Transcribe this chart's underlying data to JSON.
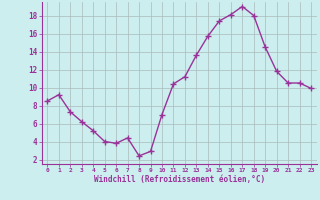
{
  "x": [
    0,
    1,
    2,
    3,
    4,
    5,
    6,
    7,
    8,
    9,
    10,
    11,
    12,
    13,
    14,
    15,
    16,
    17,
    18,
    19,
    20,
    21,
    22,
    23
  ],
  "y": [
    8.5,
    9.2,
    7.3,
    6.2,
    5.2,
    4.0,
    3.8,
    4.4,
    2.4,
    2.9,
    7.0,
    10.4,
    11.2,
    13.6,
    15.7,
    17.4,
    18.1,
    19.0,
    18.0,
    14.5,
    11.8,
    10.5,
    10.5,
    9.9
  ],
  "line_color": "#993399",
  "marker": "+",
  "marker_size": 4,
  "bg_color": "#cceeee",
  "grid_color": "#aabbbb",
  "xlabel": "Windchill (Refroidissement éolien,°C)",
  "xlabel_color": "#993399",
  "tick_color": "#993399",
  "label_color": "#993399",
  "ylim": [
    1.5,
    19.5
  ],
  "yticks": [
    2,
    4,
    6,
    8,
    10,
    12,
    14,
    16,
    18
  ],
  "xlim": [
    -0.5,
    23.5
  ],
  "xticks": [
    0,
    1,
    2,
    3,
    4,
    5,
    6,
    7,
    8,
    9,
    10,
    11,
    12,
    13,
    14,
    15,
    16,
    17,
    18,
    19,
    20,
    21,
    22,
    23
  ],
  "line_width": 1.0,
  "figsize": [
    3.2,
    2.0
  ],
  "dpi": 100
}
